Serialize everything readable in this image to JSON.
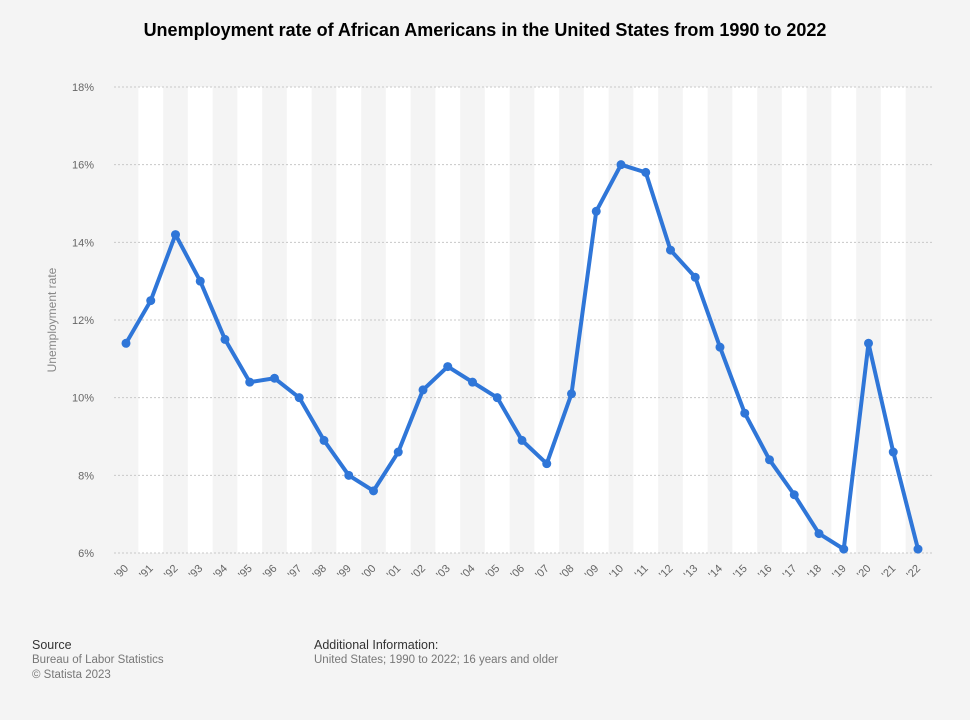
{
  "chart_data": {
    "type": "line",
    "title": "Unemployment rate of African Americans in the United States from 1990 to 2022",
    "xlabel": "",
    "ylabel": "Unemployment rate",
    "ylim": [
      6,
      18
    ],
    "yticks": [
      6,
      8,
      10,
      12,
      14,
      16,
      18
    ],
    "ytick_labels": [
      "6%",
      "8%",
      "10%",
      "12%",
      "14%",
      "16%",
      "18%"
    ],
    "categories": [
      "'90",
      "'91",
      "'92",
      "'93",
      "'94",
      "'95",
      "'96",
      "'97",
      "'98",
      "'99",
      "'00",
      "'01",
      "'02",
      "'03",
      "'04",
      "'05",
      "'06",
      "'07",
      "'08",
      "'09",
      "'10",
      "'11",
      "'12",
      "'13",
      "'14",
      "'15",
      "'16",
      "'17",
      "'18",
      "'19",
      "'20",
      "'21",
      "'22"
    ],
    "series": [
      {
        "name": "Unemployment rate",
        "values": [
          11.4,
          12.5,
          14.2,
          13.0,
          11.5,
          10.4,
          10.5,
          10.0,
          8.9,
          8.0,
          7.6,
          8.6,
          10.2,
          10.8,
          10.4,
          10.0,
          8.9,
          8.3,
          10.1,
          14.8,
          16.0,
          15.8,
          13.8,
          13.1,
          11.3,
          9.6,
          8.4,
          7.5,
          6.5,
          6.1,
          11.4,
          8.6,
          6.1
        ]
      }
    ],
    "grid": true,
    "legend": "none",
    "colors": {
      "line": "#2f76d8",
      "band": "#ffffff",
      "grid": "#c8c8c8"
    }
  },
  "footer": {
    "source_heading": "Source",
    "source_lines": [
      "Bureau of Labor Statistics",
      "© Statista 2023"
    ],
    "info_heading": "Additional Information:",
    "info_text": "United States; 1990 to 2022; 16 years and older"
  }
}
